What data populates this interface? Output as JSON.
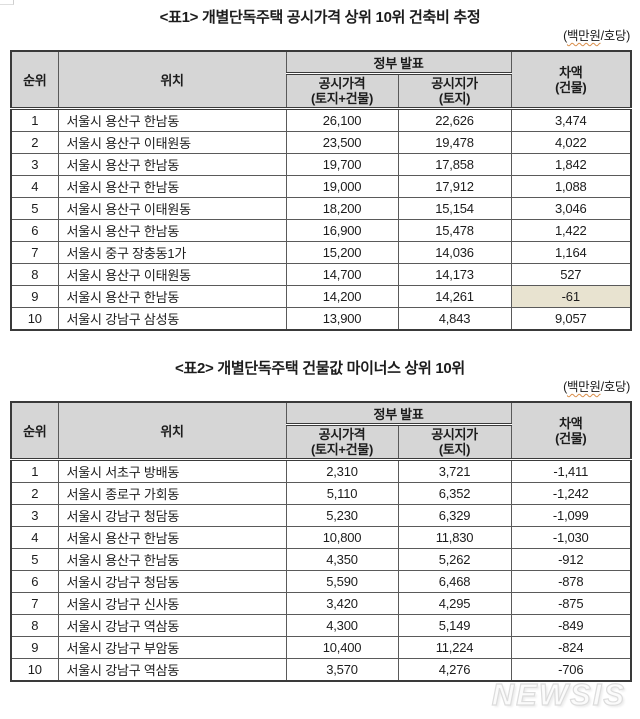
{
  "unit": {
    "prefix": "(",
    "word": "백만원",
    "suffix": "/호당)"
  },
  "watermark": "NEWSIS",
  "colors": {
    "header_bg": "#d6d6d6",
    "highlight_bg": "#e8e3d0",
    "border_dark": "#3a3a3a",
    "border_light": "#5a5a5a",
    "squiggle": "#d98e4a"
  },
  "header": {
    "rank": "순위",
    "location": "위치",
    "gov": "정부 발표",
    "price": "공시가격\n(토지+건물)",
    "land": "공시지가\n(토지)",
    "diff": "차액\n(건물)"
  },
  "row_keys": [
    "rank",
    "location",
    "price",
    "land",
    "diff"
  ],
  "tables": [
    {
      "title": "<표1> 개별단독주택 공시가격 상위 10위 건축비 추정",
      "rows": [
        {
          "rank": "1",
          "location": "서울시 용산구 한남동",
          "price": "26,100",
          "land": "22,626",
          "diff": "3,474"
        },
        {
          "rank": "2",
          "location": "서울시 용산구 이태원동",
          "price": "23,500",
          "land": "19,478",
          "diff": "4,022"
        },
        {
          "rank": "3",
          "location": "서울시 용산구 한남동",
          "price": "19,700",
          "land": "17,858",
          "diff": "1,842"
        },
        {
          "rank": "4",
          "location": "서울시 용산구 한남동",
          "price": "19,000",
          "land": "17,912",
          "diff": "1,088"
        },
        {
          "rank": "5",
          "location": "서울시 용산구 이태원동",
          "price": "18,200",
          "land": "15,154",
          "diff": "3,046"
        },
        {
          "rank": "6",
          "location": "서울시 용산구 한남동",
          "price": "16,900",
          "land": "15,478",
          "diff": "1,422"
        },
        {
          "rank": "7",
          "location": "서울시 중구 장충동1가",
          "price": "15,200",
          "land": "14,036",
          "diff": "1,164"
        },
        {
          "rank": "8",
          "location": "서울시 용산구 이태원동",
          "price": "14,700",
          "land": "14,173",
          "diff": "527"
        },
        {
          "rank": "9",
          "location": "서울시 용산구 한남동",
          "price": "14,200",
          "land": "14,261",
          "diff": "-61",
          "diff_highlight": true
        },
        {
          "rank": "10",
          "location": "서울시 강남구 삼성동",
          "price": "13,900",
          "land": "4,843",
          "diff": "9,057"
        }
      ]
    },
    {
      "title": "<표2> 개별단독주택 건물값 마이너스 상위 10위",
      "rows": [
        {
          "rank": "1",
          "location": "서울시 서초구 방배동",
          "price": "2,310",
          "land": "3,721",
          "diff": "-1,411"
        },
        {
          "rank": "2",
          "location": "서울시 종로구 가회동",
          "price": "5,110",
          "land": "6,352",
          "diff": "-1,242"
        },
        {
          "rank": "3",
          "location": "서울시 강남구 청담동",
          "price": "5,230",
          "land": "6,329",
          "diff": "-1,099"
        },
        {
          "rank": "4",
          "location": "서울시 용산구 한남동",
          "price": "10,800",
          "land": "11,830",
          "diff": "-1,030"
        },
        {
          "rank": "5",
          "location": "서울시 용산구 한남동",
          "price": "4,350",
          "land": "5,262",
          "diff": "-912"
        },
        {
          "rank": "6",
          "location": "서울시 강남구 청담동",
          "price": "5,590",
          "land": "6,468",
          "diff": "-878"
        },
        {
          "rank": "7",
          "location": "서울시 강남구 신사동",
          "price": "3,420",
          "land": "4,295",
          "diff": "-875"
        },
        {
          "rank": "8",
          "location": "서울시 강남구 역삼동",
          "price": "4,300",
          "land": "5,149",
          "diff": "-849"
        },
        {
          "rank": "9",
          "location": "서울시 강남구 부암동",
          "price": "10,400",
          "land": "11,224",
          "diff": "-824"
        },
        {
          "rank": "10",
          "location": "서울시 강남구 역삼동",
          "price": "3,570",
          "land": "4,276",
          "diff": "-706"
        }
      ]
    }
  ]
}
